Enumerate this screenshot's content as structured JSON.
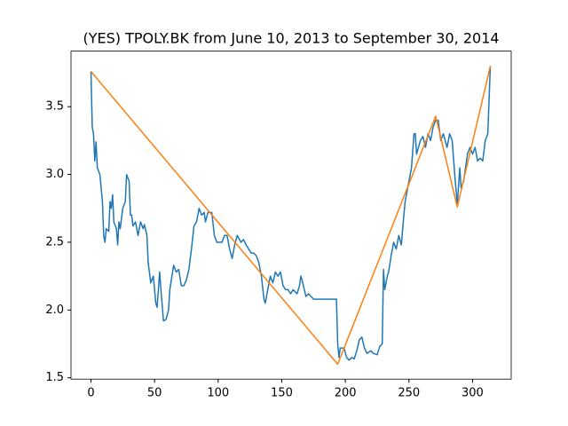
{
  "chart_data": {
    "type": "line",
    "title": "(YES) TPOLY.BK from June 10, 2013 to September 30, 2014",
    "xlim": [
      -15.7,
      330.4
    ],
    "xticks": [
      0,
      50,
      100,
      150,
      200,
      250,
      300
    ],
    "ylim": [
      1.49,
      3.91
    ],
    "yticks": [
      1.5,
      {
        "value": 2,
        "label": "2.0"
      },
      2.5,
      {
        "value": 3,
        "label": "3.0"
      },
      3.5
    ],
    "series": [
      {
        "color": "#1f77b4",
        "x": [
          0,
          1,
          2,
          3,
          4,
          5,
          7,
          9,
          10,
          11,
          12,
          14,
          15,
          16,
          17,
          18,
          20,
          21,
          22,
          23,
          25,
          27,
          28,
          30,
          31,
          32,
          33,
          35,
          37,
          39,
          41,
          42,
          44,
          45,
          47,
          49,
          51,
          52,
          54,
          55,
          57,
          59,
          61,
          62,
          65,
          67,
          69,
          71,
          73,
          75,
          77,
          79,
          81,
          83,
          85,
          87,
          89,
          90,
          92,
          95,
          97,
          99,
          101,
          103,
          105,
          107,
          109,
          111,
          113,
          115,
          118,
          120,
          122,
          124,
          126,
          128,
          130,
          132,
          134,
          136,
          137,
          139,
          141,
          143,
          145,
          147,
          149,
          151,
          153,
          155,
          157,
          159,
          162,
          164,
          165,
          166,
          169,
          171,
          173,
          175,
          193,
          194,
          195,
          196,
          199,
          201,
          203,
          205,
          207,
          209,
          211,
          213,
          215,
          217,
          220,
          222,
          225,
          227,
          229,
          230,
          231,
          233,
          234,
          236,
          238,
          240,
          242,
          244,
          246,
          247,
          249,
          252,
          254,
          255,
          256,
          259,
          261,
          263,
          265,
          267,
          269,
          271,
          273,
          275,
          277,
          280,
          282,
          284,
          286,
          288,
          290,
          291,
          293,
          296,
          298,
          300,
          302,
          304,
          306,
          308,
          310,
          312,
          314
        ],
        "values": [
          3.76,
          3.35,
          3.3,
          3.1,
          3.24,
          3.05,
          3.0,
          2.8,
          2.55,
          2.5,
          2.6,
          2.58,
          2.8,
          2.75,
          2.85,
          2.65,
          2.6,
          2.48,
          2.65,
          2.6,
          2.75,
          2.8,
          3.0,
          2.95,
          2.7,
          2.7,
          2.62,
          2.65,
          2.55,
          2.65,
          2.6,
          2.63,
          2.55,
          2.35,
          2.2,
          2.25,
          2.05,
          2.02,
          2.28,
          2.15,
          1.92,
          1.93,
          2.0,
          2.15,
          2.33,
          2.28,
          2.3,
          2.18,
          2.18,
          2.22,
          2.3,
          2.45,
          2.62,
          2.65,
          2.75,
          2.7,
          2.72,
          2.65,
          2.72,
          2.72,
          2.55,
          2.5,
          2.5,
          2.5,
          2.55,
          2.55,
          2.45,
          2.38,
          2.48,
          2.55,
          2.5,
          2.52,
          2.48,
          2.45,
          2.42,
          2.42,
          2.4,
          2.35,
          2.25,
          2.08,
          2.05,
          2.15,
          2.25,
          2.2,
          2.28,
          2.25,
          2.28,
          2.18,
          2.15,
          2.15,
          2.12,
          2.15,
          2.12,
          2.18,
          2.25,
          2.22,
          2.1,
          2.12,
          2.1,
          2.08,
          2.08,
          1.75,
          1.65,
          1.72,
          1.72,
          1.65,
          1.63,
          1.65,
          1.64,
          1.7,
          1.78,
          1.8,
          1.72,
          1.68,
          1.7,
          1.68,
          1.67,
          1.73,
          1.75,
          2.3,
          2.15,
          2.25,
          2.28,
          2.4,
          2.5,
          2.45,
          2.55,
          2.48,
          2.7,
          2.8,
          2.9,
          3.05,
          3.3,
          3.3,
          3.15,
          3.25,
          3.28,
          3.2,
          3.3,
          3.25,
          3.35,
          3.4,
          3.4,
          3.25,
          3.3,
          3.2,
          3.3,
          3.25,
          3.0,
          2.78,
          3.05,
          2.9,
          2.95,
          3.15,
          3.2,
          3.15,
          3.2,
          3.1,
          3.12,
          3.1,
          3.25,
          3.3,
          3.8
        ]
      },
      {
        "color": "#ff7f0e",
        "x": [
          0,
          194,
          271,
          288,
          314
        ],
        "values": [
          3.76,
          1.6,
          3.43,
          2.76,
          3.8
        ]
      }
    ]
  }
}
